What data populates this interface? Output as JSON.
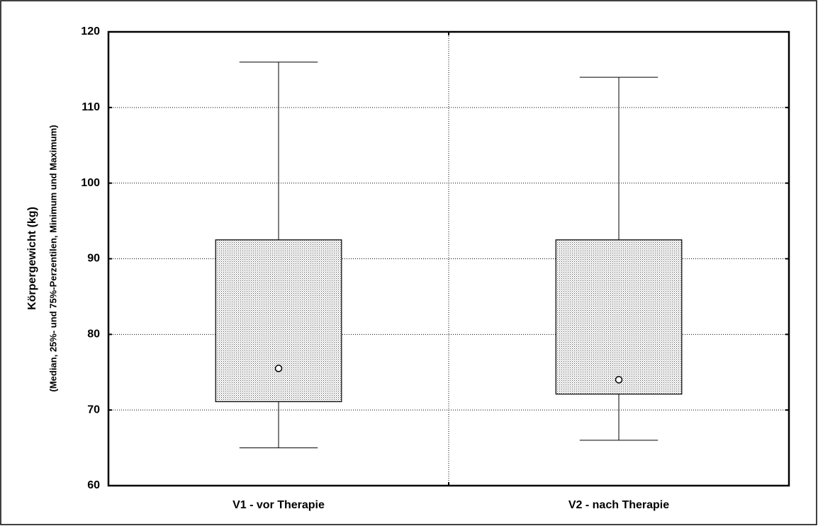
{
  "chart_data": {
    "type": "box",
    "y_label": "Körpergewicht (kg)",
    "y_sublabel": "(Median, 25%- und 75%-Perzentilen, Minimum und Maximum)",
    "categories": [
      "V1 - vor Therapie",
      "V2 - nach Therapie"
    ],
    "min": [
      65,
      66
    ],
    "q1": [
      71.1,
      72.1
    ],
    "median": [
      75.5,
      74
    ],
    "q3": [
      92.5,
      92.5
    ],
    "max": [
      116,
      114
    ],
    "color": "#d4d4d4",
    "ylim": [
      60,
      120
    ],
    "yticks": [
      60,
      70,
      80,
      90,
      100,
      110,
      120
    ],
    "grid": true
  }
}
